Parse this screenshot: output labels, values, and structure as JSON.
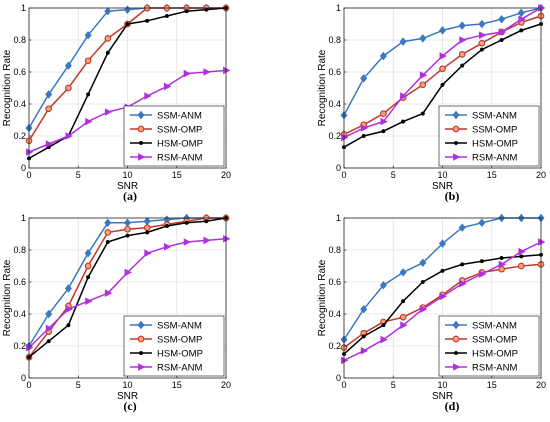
{
  "chart_data": [
    {
      "panel": "(a)",
      "type": "line",
      "xlabel": "SNR",
      "ylabel": "Recognition Rate",
      "xlim": [
        0,
        20
      ],
      "ylim": [
        0,
        1
      ],
      "xticks": [
        0,
        5,
        10,
        15,
        20
      ],
      "yticks": [
        0,
        0.2,
        0.4,
        0.6,
        0.8,
        1
      ],
      "grid": true,
      "legend_position": "bottom-right",
      "x": [
        0,
        2,
        4,
        6,
        8,
        10,
        12,
        14,
        16,
        18,
        20
      ],
      "series": [
        {
          "name": "SSM-ANM",
          "color": "#3a78c2",
          "marker": "diamond",
          "values": [
            0.25,
            0.46,
            0.64,
            0.83,
            0.98,
            0.99,
            1.0,
            1.0,
            1.0,
            1.0,
            1.0
          ]
        },
        {
          "name": "SSM-OMP",
          "color": "#c0392b",
          "marker": "circle",
          "values": [
            0.17,
            0.37,
            0.5,
            0.67,
            0.81,
            0.9,
            1.0,
            1.0,
            1.0,
            1.0,
            1.0
          ]
        },
        {
          "name": "HSM-OMP",
          "color": "#000000",
          "marker": "dot",
          "values": [
            0.06,
            0.13,
            0.2,
            0.46,
            0.72,
            0.9,
            0.92,
            0.95,
            0.98,
            0.99,
            1.0
          ]
        },
        {
          "name": "RSM-ANM",
          "color": "#b030e0",
          "marker": "triangle-right",
          "values": [
            0.1,
            0.15,
            0.2,
            0.29,
            0.35,
            0.38,
            0.45,
            0.51,
            0.59,
            0.6,
            0.61
          ]
        }
      ]
    },
    {
      "panel": "(b)",
      "type": "line",
      "xlabel": "SNR",
      "ylabel": "Recognition Rate",
      "xlim": [
        0,
        20
      ],
      "ylim": [
        0,
        1
      ],
      "xticks": [
        0,
        5,
        10,
        15,
        20
      ],
      "yticks": [
        0,
        0.2,
        0.4,
        0.6,
        0.8,
        1
      ],
      "grid": true,
      "legend_position": "bottom-right",
      "x": [
        0,
        2,
        4,
        6,
        8,
        10,
        12,
        14,
        16,
        18,
        20
      ],
      "series": [
        {
          "name": "SSM-ANM",
          "color": "#3a78c2",
          "marker": "diamond",
          "values": [
            0.33,
            0.56,
            0.7,
            0.79,
            0.81,
            0.86,
            0.89,
            0.9,
            0.93,
            0.97,
            1.0
          ]
        },
        {
          "name": "SSM-OMP",
          "color": "#c0392b",
          "marker": "circle",
          "values": [
            0.21,
            0.27,
            0.34,
            0.44,
            0.52,
            0.62,
            0.71,
            0.78,
            0.85,
            0.91,
            0.95
          ]
        },
        {
          "name": "HSM-OMP",
          "color": "#000000",
          "marker": "dot",
          "values": [
            0.13,
            0.2,
            0.23,
            0.29,
            0.34,
            0.52,
            0.64,
            0.74,
            0.8,
            0.86,
            0.9
          ]
        },
        {
          "name": "RSM-ANM",
          "color": "#b030e0",
          "marker": "triangle-right",
          "values": [
            0.19,
            0.25,
            0.29,
            0.45,
            0.58,
            0.7,
            0.8,
            0.83,
            0.85,
            0.93,
            1.0
          ]
        }
      ]
    },
    {
      "panel": "(c)",
      "type": "line",
      "xlabel": "SNR",
      "ylabel": "Recognition Rate",
      "xlim": [
        0,
        20
      ],
      "ylim": [
        0,
        1
      ],
      "xticks": [
        0,
        5,
        10,
        15,
        20
      ],
      "yticks": [
        0,
        0.2,
        0.4,
        0.6,
        0.8,
        1
      ],
      "grid": true,
      "legend_position": "bottom-right",
      "x": [
        0,
        2,
        4,
        6,
        8,
        10,
        12,
        14,
        16,
        18,
        20
      ],
      "series": [
        {
          "name": "SSM-ANM",
          "color": "#3a78c2",
          "marker": "diamond",
          "values": [
            0.2,
            0.4,
            0.56,
            0.78,
            0.97,
            0.97,
            0.98,
            0.99,
            1.0,
            1.0,
            1.0
          ]
        },
        {
          "name": "SSM-OMP",
          "color": "#c0392b",
          "marker": "circle",
          "values": [
            0.13,
            0.29,
            0.45,
            0.7,
            0.91,
            0.93,
            0.94,
            0.96,
            0.98,
            1.0,
            1.0
          ]
        },
        {
          "name": "HSM-OMP",
          "color": "#000000",
          "marker": "dot",
          "values": [
            0.13,
            0.23,
            0.33,
            0.63,
            0.85,
            0.89,
            0.91,
            0.95,
            0.97,
            0.98,
            1.0
          ]
        },
        {
          "name": "RSM-ANM",
          "color": "#b030e0",
          "marker": "triangle-right",
          "values": [
            0.19,
            0.31,
            0.43,
            0.48,
            0.53,
            0.66,
            0.78,
            0.82,
            0.85,
            0.86,
            0.87
          ]
        }
      ]
    },
    {
      "panel": "(d)",
      "type": "line",
      "xlabel": "SNR",
      "ylabel": "Recognition Rate",
      "xlim": [
        0,
        20
      ],
      "ylim": [
        0,
        1
      ],
      "xticks": [
        0,
        5,
        10,
        15,
        20
      ],
      "yticks": [
        0,
        0.2,
        0.4,
        0.6,
        0.8,
        1
      ],
      "grid": true,
      "legend_position": "bottom-right",
      "x": [
        0,
        2,
        4,
        6,
        8,
        10,
        12,
        14,
        16,
        18,
        20
      ],
      "series": [
        {
          "name": "SSM-ANM",
          "color": "#3a78c2",
          "marker": "diamond",
          "values": [
            0.24,
            0.43,
            0.58,
            0.66,
            0.72,
            0.84,
            0.94,
            0.97,
            1.0,
            1.0,
            1.0
          ]
        },
        {
          "name": "SSM-OMP",
          "color": "#c0392b",
          "marker": "circle",
          "values": [
            0.19,
            0.28,
            0.35,
            0.38,
            0.44,
            0.52,
            0.61,
            0.66,
            0.68,
            0.7,
            0.71
          ]
        },
        {
          "name": "HSM-OMP",
          "color": "#000000",
          "marker": "dot",
          "values": [
            0.15,
            0.26,
            0.33,
            0.48,
            0.6,
            0.67,
            0.71,
            0.73,
            0.75,
            0.76,
            0.77
          ]
        },
        {
          "name": "RSM-ANM",
          "color": "#b030e0",
          "marker": "triangle-right",
          "values": [
            0.11,
            0.17,
            0.24,
            0.33,
            0.43,
            0.51,
            0.59,
            0.65,
            0.71,
            0.79,
            0.85
          ]
        }
      ]
    }
  ]
}
